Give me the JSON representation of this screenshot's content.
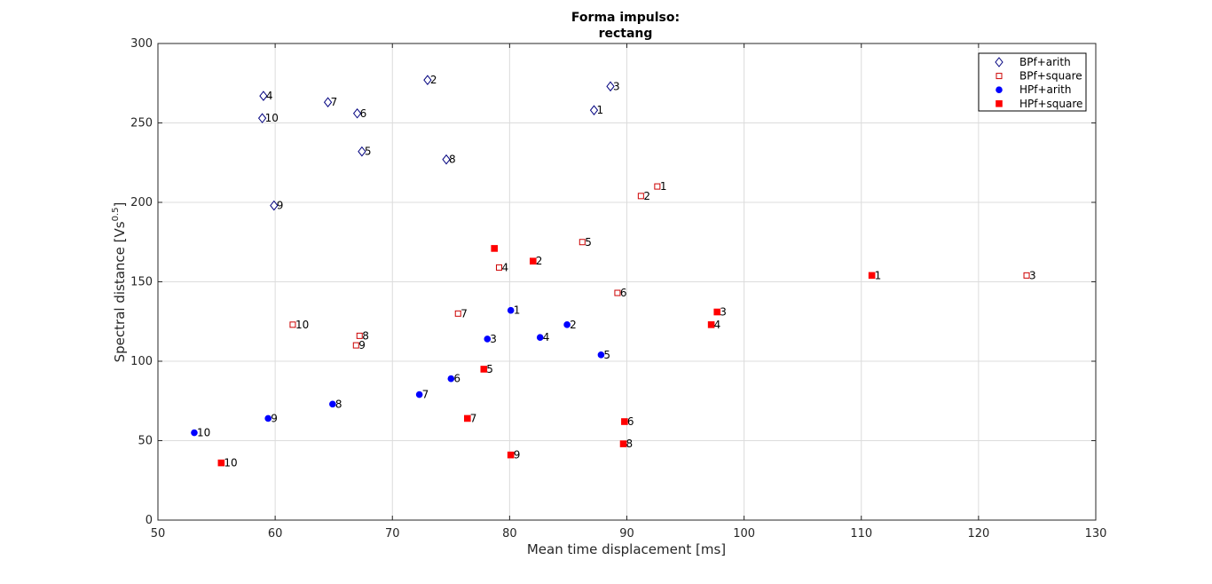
{
  "chart_data": {
    "type": "scatter",
    "title": [
      "Forma impulso:",
      "rectang"
    ],
    "xlabel": "Mean time displacement [ms]",
    "ylabel_base": "Spectral distance [Vs",
    "ylabel_sup": "0.5",
    "ylabel_end": "]",
    "xlim": [
      50,
      130
    ],
    "ylim": [
      0,
      300
    ],
    "xticks": [
      50,
      60,
      70,
      80,
      90,
      100,
      110,
      120,
      130
    ],
    "yticks": [
      0,
      50,
      100,
      150,
      200,
      250,
      300
    ],
    "grid": true,
    "legend_position": "top-right",
    "series": [
      {
        "name": "BPf+arith",
        "marker": "diamond-open",
        "color": "#00007f",
        "points": [
          {
            "x": 87.2,
            "y": 258,
            "label": "1"
          },
          {
            "x": 73.0,
            "y": 277,
            "label": "2"
          },
          {
            "x": 88.6,
            "y": 273,
            "label": "3"
          },
          {
            "x": 59.0,
            "y": 267,
            "label": "4"
          },
          {
            "x": 67.4,
            "y": 232,
            "label": "5"
          },
          {
            "x": 67.0,
            "y": 256,
            "label": "6"
          },
          {
            "x": 64.5,
            "y": 263,
            "label": "7"
          },
          {
            "x": 74.6,
            "y": 227,
            "label": "8"
          },
          {
            "x": 59.9,
            "y": 198,
            "label": "9"
          },
          {
            "x": 58.9,
            "y": 253,
            "label": "10"
          }
        ]
      },
      {
        "name": "BPf+square",
        "marker": "square-open",
        "color": "#cc0000",
        "points": [
          {
            "x": 92.6,
            "y": 210,
            "label": "1"
          },
          {
            "x": 91.2,
            "y": 204,
            "label": "2"
          },
          {
            "x": 124.1,
            "y": 154,
            "label": "3"
          },
          {
            "x": 79.1,
            "y": 159,
            "label": "4"
          },
          {
            "x": 86.2,
            "y": 175,
            "label": "5"
          },
          {
            "x": 89.2,
            "y": 143,
            "label": "6"
          },
          {
            "x": 75.6,
            "y": 130,
            "label": "7"
          },
          {
            "x": 67.2,
            "y": 116,
            "label": "8"
          },
          {
            "x": 66.9,
            "y": 110,
            "label": "9"
          },
          {
            "x": 61.5,
            "y": 123,
            "label": "10"
          }
        ]
      },
      {
        "name": "HPf+arith",
        "marker": "circle-filled",
        "color": "#0000ff",
        "points": [
          {
            "x": 80.1,
            "y": 132,
            "label": "1"
          },
          {
            "x": 84.9,
            "y": 123,
            "label": "2"
          },
          {
            "x": 78.1,
            "y": 114,
            "label": "3"
          },
          {
            "x": 82.6,
            "y": 115,
            "label": "4"
          },
          {
            "x": 87.8,
            "y": 104,
            "label": "5"
          },
          {
            "x": 75.0,
            "y": 89,
            "label": "6"
          },
          {
            "x": 72.3,
            "y": 79,
            "label": "7"
          },
          {
            "x": 64.9,
            "y": 73,
            "label": "8"
          },
          {
            "x": 59.4,
            "y": 64,
            "label": "9"
          },
          {
            "x": 53.1,
            "y": 55,
            "label": "10"
          }
        ]
      },
      {
        "name": "HPf+square",
        "marker": "square-filled",
        "color": "#ff0000",
        "points": [
          {
            "x": 110.9,
            "y": 154,
            "label": "1"
          },
          {
            "x": 82.0,
            "y": 163,
            "label": "2"
          },
          {
            "x": 97.7,
            "y": 131,
            "label": "3"
          },
          {
            "x": 97.2,
            "y": 123,
            "label": "4"
          },
          {
            "x": 78.7,
            "y": 171,
            "label": ""
          },
          {
            "x": 77.8,
            "y": 95,
            "label": "5"
          },
          {
            "x": 89.8,
            "y": 62,
            "label": "6"
          },
          {
            "x": 76.4,
            "y": 64,
            "label": "7"
          },
          {
            "x": 89.7,
            "y": 48,
            "label": "8"
          },
          {
            "x": 80.1,
            "y": 41,
            "label": "9"
          },
          {
            "x": 55.4,
            "y": 36,
            "label": "10"
          }
        ]
      }
    ]
  }
}
